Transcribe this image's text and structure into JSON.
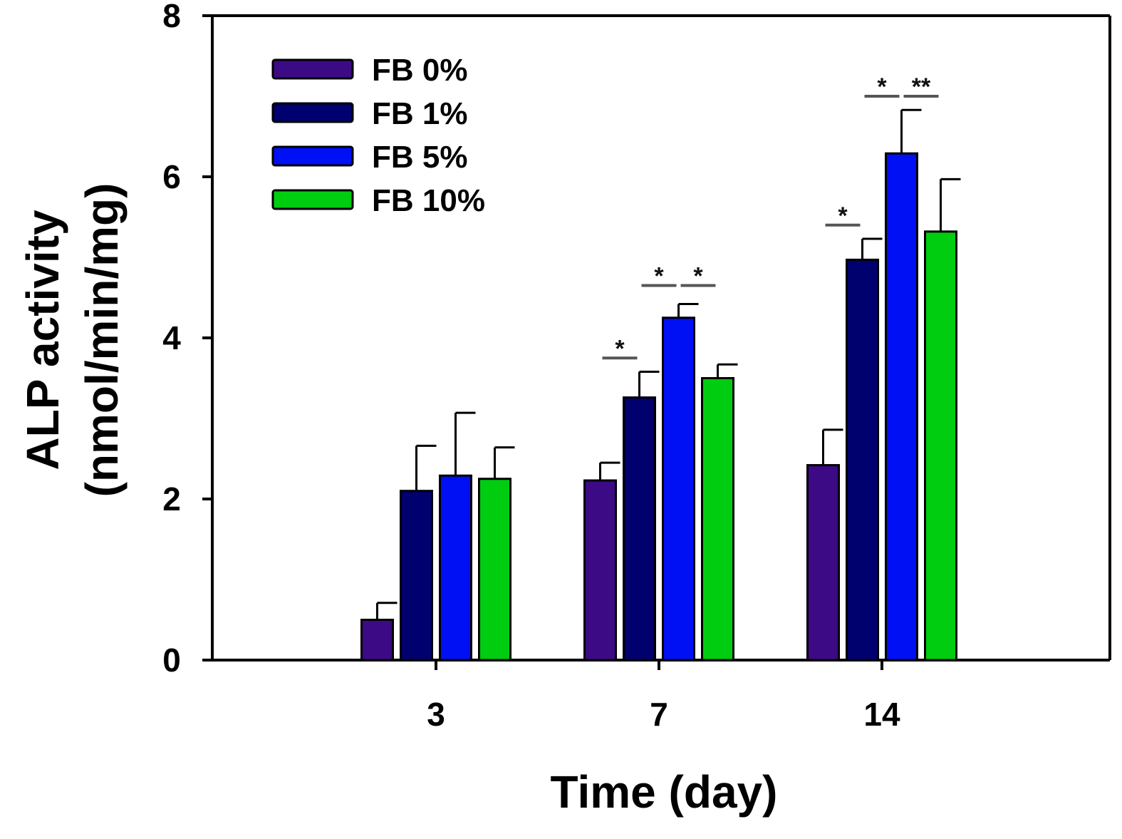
{
  "chart_data": {
    "type": "bar",
    "title": "",
    "xlabel": "Time (day)",
    "ylabel_line1": "ALP activity",
    "ylabel_line2": "(nmol/min/mg)",
    "ylim": [
      0,
      8
    ],
    "yticks": [
      0,
      2,
      4,
      6,
      8
    ],
    "categories": [
      "3",
      "7",
      "14"
    ],
    "legend_position": "top-left",
    "grid": false,
    "series": [
      {
        "name": "FB 0%",
        "color": "#3d0a85",
        "values": [
          0.5,
          2.23,
          2.42
        ],
        "errors": [
          0.21,
          0.22,
          0.44
        ]
      },
      {
        "name": "FB 1%",
        "color": "#00006e",
        "values": [
          2.1,
          3.26,
          4.97
        ],
        "errors": [
          0.56,
          0.32,
          0.26
        ]
      },
      {
        "name": "FB 5%",
        "color": "#0010f5",
        "values": [
          2.29,
          4.25,
          6.29
        ],
        "errors": [
          0.78,
          0.17,
          0.54
        ]
      },
      {
        "name": "FB 10%",
        "color": "#00cc10",
        "values": [
          2.25,
          3.5,
          5.32
        ],
        "errors": [
          0.39,
          0.17,
          0.65
        ]
      }
    ],
    "significance": [
      {
        "category": "7",
        "from_series": 0,
        "to_series": 1,
        "label": "*",
        "level": 3.75
      },
      {
        "category": "7",
        "from_series": 1,
        "to_series": 2,
        "label": "*",
        "level": 4.65
      },
      {
        "category": "7",
        "from_series": 2,
        "to_series": 3,
        "label": "*",
        "level": 4.65
      },
      {
        "category": "14",
        "from_series": 0,
        "to_series": 1,
        "label": "*",
        "level": 5.4
      },
      {
        "category": "14",
        "from_series": 1,
        "to_series": 2,
        "label": "*",
        "level": 7.0
      },
      {
        "category": "14",
        "from_series": 2,
        "to_series": 3,
        "label": "**",
        "level": 7.0
      }
    ]
  }
}
